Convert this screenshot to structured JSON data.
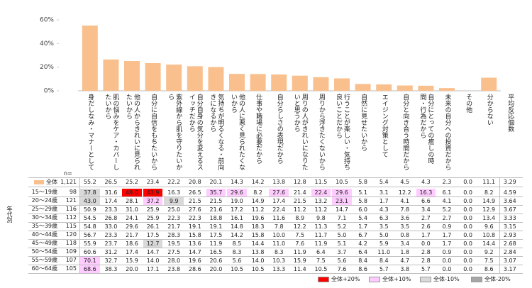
{
  "chart_data": {
    "type": "bar",
    "categories": [
      "身だしなみ・マナーとして",
      "肌の悩みをケア・カバーしたいから",
      "他の人からきれいに見られたいから",
      "自分に自信をもちたいから",
      "紫外線から肌を守りたいから",
      "自分自身の気分を変えるスイッチだから",
      "気持ちが明るくなる・前向きになるから",
      "他の人に悪く見られたくないから",
      "仕事や職場に必要だから",
      "自分らしさの表現だから",
      "周りの人がきれいになりたいと思うから",
      "周りから浮きたくないから",
      "行うことが楽しい・気持ち良いことだから",
      "自然に見せたいから",
      "エイジング対策として",
      "自分と向き合う時間だから",
      "自分にとっての癒しの時間・行為だから",
      "未来の自分への投資だから",
      "その他",
      "分からない"
    ],
    "values": [
      55.2,
      26.5,
      25.2,
      23.4,
      22.2,
      20.8,
      20.1,
      14.3,
      14.2,
      13.8,
      12.8,
      11.5,
      10.5,
      5.8,
      5.4,
      4.5,
      4.3,
      2.3,
      0,
      11.1
    ],
    "value_labels": [
      "55.2",
      "26.5",
      "25.2",
      "23.4",
      "22.2",
      "20.8",
      "20.1",
      "14.3",
      "14.2",
      "13.8",
      "12.8",
      "11.5",
      "10.5",
      "5.8",
      "5.4",
      "4.5",
      "4.3",
      "2.3",
      "0.0",
      "11.1"
    ],
    "color": "#f9c08e",
    "ylim": [
      0,
      60
    ],
    "yticks": [
      {
        "value": 0,
        "label": "0%"
      },
      {
        "value": 20,
        "label": "20%"
      },
      {
        "value": 40,
        "label": "40%"
      },
      {
        "value": 60,
        "label": "60%"
      }
    ],
    "grid": false
  },
  "table": {
    "extra_column": "平均反応個数",
    "n_label": "n=",
    "total": {
      "label": "全体",
      "n": "1,121",
      "extra": "3.29"
    },
    "group_label": "年代別",
    "rows": [
      {
        "label": "15～19歳",
        "n": 98,
        "values": [
          "37.8",
          "31.6",
          "48.0",
          "43.9",
          "16.3",
          "26.5",
          "35.7",
          "29.6",
          "8.2",
          "27.6",
          "21.4",
          "22.4",
          "29.6",
          "5.1",
          "3.1",
          "12.2",
          "16.3",
          "6.1",
          "0.0",
          "8.2",
          "4.59"
        ]
      },
      {
        "label": "20～24歳",
        "n": 121,
        "values": [
          "43.0",
          "17.4",
          "28.1",
          "37.2",
          "9.9",
          "21.5",
          "21.5",
          "19.0",
          "14.9",
          "17.4",
          "21.5",
          "13.2",
          "23.1",
          "5.8",
          "1.7",
          "4.1",
          "6.6",
          "4.1",
          "0.0",
          "14.9",
          "3.64"
        ]
      },
      {
        "label": "25～29歳",
        "n": 116,
        "values": [
          "50.9",
          "23.3",
          "31.0",
          "25.9",
          "25.0",
          "27.6",
          "21.6",
          "17.2",
          "11.2",
          "22.4",
          "11.2",
          "11.2",
          "14.7",
          "6.0",
          "4.3",
          "7.8",
          "3.4",
          "5.2",
          "0.0",
          "12.9",
          "3.67"
        ]
      },
      {
        "label": "30～34歳",
        "n": 112,
        "values": [
          "54.5",
          "26.8",
          "24.1",
          "25.9",
          "22.3",
          "22.3",
          "18.8",
          "16.1",
          "19.6",
          "11.6",
          "8.9",
          "9.8",
          "7.1",
          "5.4",
          "6.3",
          "3.6",
          "2.7",
          "2.7",
          "0.0",
          "13.4",
          "3.33"
        ]
      },
      {
        "label": "35～39歳",
        "n": 115,
        "values": [
          "54.8",
          "33.0",
          "29.6",
          "26.1",
          "21.7",
          "19.1",
          "19.1",
          "14.8",
          "18.3",
          "7.8",
          "12.2",
          "11.3",
          "5.2",
          "1.7",
          "3.5",
          "3.5",
          "2.6",
          "0.9",
          "0.0",
          "9.6",
          "3.15"
        ]
      },
      {
        "label": "40～44歳",
        "n": 120,
        "values": [
          "56.7",
          "23.3",
          "21.7",
          "17.5",
          "28.3",
          "15.8",
          "17.5",
          "14.2",
          "15.8",
          "10.0",
          "7.5",
          "11.7",
          "5.0",
          "6.7",
          "5.0",
          "0.8",
          "1.7",
          "1.7",
          "0.0",
          "10.8",
          "2.93"
        ]
      },
      {
        "label": "45～49歳",
        "n": 118,
        "values": [
          "55.9",
          "23.7",
          "18.6",
          "12.7",
          "19.5",
          "13.6",
          "11.9",
          "8.5",
          "14.4",
          "11.0",
          "7.6",
          "11.9",
          "5.1",
          "4.2",
          "5.9",
          "3.4",
          "0.0",
          "1.7",
          "0.0",
          "14.4",
          "2.68"
        ]
      },
      {
        "label": "50～54歳",
        "n": 109,
        "values": [
          "60.6",
          "31.2",
          "17.4",
          "14.7",
          "27.5",
          "14.7",
          "16.5",
          "8.3",
          "13.8",
          "8.3",
          "11.9",
          "6.4",
          "3.7",
          "6.4",
          "11.0",
          "1.8",
          "2.8",
          "0.9",
          "0.0",
          "9.2",
          "2.84"
        ]
      },
      {
        "label": "55～59歳",
        "n": 107,
        "values": [
          "70.1",
          "32.7",
          "15.9",
          "14.0",
          "28.0",
          "19.6",
          "20.6",
          "5.6",
          "14.0",
          "10.3",
          "15.9",
          "7.5",
          "5.6",
          "8.4",
          "8.4",
          "4.7",
          "2.8",
          "0.0",
          "0.0",
          "7.5",
          "3.07"
        ]
      },
      {
        "label": "60～64歳",
        "n": 105,
        "values": [
          "68.6",
          "38.3",
          "20.0",
          "17.1",
          "23.8",
          "28.6",
          "20.0",
          "10.5",
          "10.5",
          "13.3",
          "11.4",
          "10.5",
          "7.6",
          "8.6",
          "5.7",
          "3.8",
          "5.7",
          "0.0",
          "0.0",
          "8.6",
          "3.17"
        ]
      }
    ],
    "legend": [
      {
        "label": "全体+20%",
        "color": "#ff0000",
        "cells": [
          [
            0,
            2
          ],
          [
            0,
            3
          ]
        ]
      },
      {
        "label": "全体+10%",
        "color": "#ffccff",
        "cells": [
          [
            0,
            6
          ],
          [
            0,
            7
          ],
          [
            0,
            9
          ],
          [
            0,
            11
          ],
          [
            0,
            12
          ],
          [
            0,
            16
          ],
          [
            1,
            3
          ],
          [
            1,
            12
          ],
          [
            8,
            0
          ],
          [
            9,
            0
          ]
        ]
      },
      {
        "label": "全体-10%",
        "color": "#d9d9d9",
        "cells": [
          [
            0,
            0
          ],
          [
            1,
            0
          ],
          [
            1,
            4
          ],
          [
            6,
            3
          ]
        ]
      },
      {
        "label": "全体-20%",
        "color": "#a6a6a6",
        "cells": []
      }
    ]
  }
}
